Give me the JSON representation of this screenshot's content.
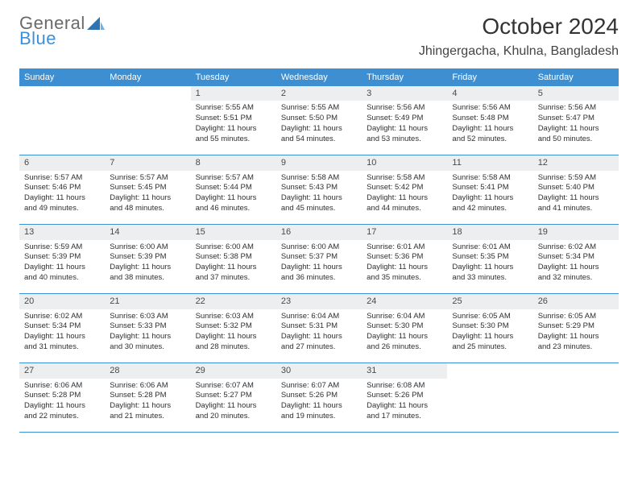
{
  "brand": {
    "part1": "General",
    "part2": "Blue"
  },
  "header": {
    "month_title": "October 2024",
    "location": "Jhingergacha, Khulna, Bangladesh"
  },
  "theme": {
    "header_bg": "#3d8fd1",
    "header_text": "#ffffff",
    "daybar_bg": "#eceeef",
    "rule_color": "#3d8fd1",
    "text_color": "#2f2f2f"
  },
  "days_of_week": [
    "Sunday",
    "Monday",
    "Tuesday",
    "Wednesday",
    "Thursday",
    "Friday",
    "Saturday"
  ],
  "weeks": [
    [
      {
        "num": "",
        "sunrise": "",
        "sunset": "",
        "daylight": ""
      },
      {
        "num": "",
        "sunrise": "",
        "sunset": "",
        "daylight": ""
      },
      {
        "num": "1",
        "sunrise": "Sunrise: 5:55 AM",
        "sunset": "Sunset: 5:51 PM",
        "daylight": "Daylight: 11 hours and 55 minutes."
      },
      {
        "num": "2",
        "sunrise": "Sunrise: 5:55 AM",
        "sunset": "Sunset: 5:50 PM",
        "daylight": "Daylight: 11 hours and 54 minutes."
      },
      {
        "num": "3",
        "sunrise": "Sunrise: 5:56 AM",
        "sunset": "Sunset: 5:49 PM",
        "daylight": "Daylight: 11 hours and 53 minutes."
      },
      {
        "num": "4",
        "sunrise": "Sunrise: 5:56 AM",
        "sunset": "Sunset: 5:48 PM",
        "daylight": "Daylight: 11 hours and 52 minutes."
      },
      {
        "num": "5",
        "sunrise": "Sunrise: 5:56 AM",
        "sunset": "Sunset: 5:47 PM",
        "daylight": "Daylight: 11 hours and 50 minutes."
      }
    ],
    [
      {
        "num": "6",
        "sunrise": "Sunrise: 5:57 AM",
        "sunset": "Sunset: 5:46 PM",
        "daylight": "Daylight: 11 hours and 49 minutes."
      },
      {
        "num": "7",
        "sunrise": "Sunrise: 5:57 AM",
        "sunset": "Sunset: 5:45 PM",
        "daylight": "Daylight: 11 hours and 48 minutes."
      },
      {
        "num": "8",
        "sunrise": "Sunrise: 5:57 AM",
        "sunset": "Sunset: 5:44 PM",
        "daylight": "Daylight: 11 hours and 46 minutes."
      },
      {
        "num": "9",
        "sunrise": "Sunrise: 5:58 AM",
        "sunset": "Sunset: 5:43 PM",
        "daylight": "Daylight: 11 hours and 45 minutes."
      },
      {
        "num": "10",
        "sunrise": "Sunrise: 5:58 AM",
        "sunset": "Sunset: 5:42 PM",
        "daylight": "Daylight: 11 hours and 44 minutes."
      },
      {
        "num": "11",
        "sunrise": "Sunrise: 5:58 AM",
        "sunset": "Sunset: 5:41 PM",
        "daylight": "Daylight: 11 hours and 42 minutes."
      },
      {
        "num": "12",
        "sunrise": "Sunrise: 5:59 AM",
        "sunset": "Sunset: 5:40 PM",
        "daylight": "Daylight: 11 hours and 41 minutes."
      }
    ],
    [
      {
        "num": "13",
        "sunrise": "Sunrise: 5:59 AM",
        "sunset": "Sunset: 5:39 PM",
        "daylight": "Daylight: 11 hours and 40 minutes."
      },
      {
        "num": "14",
        "sunrise": "Sunrise: 6:00 AM",
        "sunset": "Sunset: 5:39 PM",
        "daylight": "Daylight: 11 hours and 38 minutes."
      },
      {
        "num": "15",
        "sunrise": "Sunrise: 6:00 AM",
        "sunset": "Sunset: 5:38 PM",
        "daylight": "Daylight: 11 hours and 37 minutes."
      },
      {
        "num": "16",
        "sunrise": "Sunrise: 6:00 AM",
        "sunset": "Sunset: 5:37 PM",
        "daylight": "Daylight: 11 hours and 36 minutes."
      },
      {
        "num": "17",
        "sunrise": "Sunrise: 6:01 AM",
        "sunset": "Sunset: 5:36 PM",
        "daylight": "Daylight: 11 hours and 35 minutes."
      },
      {
        "num": "18",
        "sunrise": "Sunrise: 6:01 AM",
        "sunset": "Sunset: 5:35 PM",
        "daylight": "Daylight: 11 hours and 33 minutes."
      },
      {
        "num": "19",
        "sunrise": "Sunrise: 6:02 AM",
        "sunset": "Sunset: 5:34 PM",
        "daylight": "Daylight: 11 hours and 32 minutes."
      }
    ],
    [
      {
        "num": "20",
        "sunrise": "Sunrise: 6:02 AM",
        "sunset": "Sunset: 5:34 PM",
        "daylight": "Daylight: 11 hours and 31 minutes."
      },
      {
        "num": "21",
        "sunrise": "Sunrise: 6:03 AM",
        "sunset": "Sunset: 5:33 PM",
        "daylight": "Daylight: 11 hours and 30 minutes."
      },
      {
        "num": "22",
        "sunrise": "Sunrise: 6:03 AM",
        "sunset": "Sunset: 5:32 PM",
        "daylight": "Daylight: 11 hours and 28 minutes."
      },
      {
        "num": "23",
        "sunrise": "Sunrise: 6:04 AM",
        "sunset": "Sunset: 5:31 PM",
        "daylight": "Daylight: 11 hours and 27 minutes."
      },
      {
        "num": "24",
        "sunrise": "Sunrise: 6:04 AM",
        "sunset": "Sunset: 5:30 PM",
        "daylight": "Daylight: 11 hours and 26 minutes."
      },
      {
        "num": "25",
        "sunrise": "Sunrise: 6:05 AM",
        "sunset": "Sunset: 5:30 PM",
        "daylight": "Daylight: 11 hours and 25 minutes."
      },
      {
        "num": "26",
        "sunrise": "Sunrise: 6:05 AM",
        "sunset": "Sunset: 5:29 PM",
        "daylight": "Daylight: 11 hours and 23 minutes."
      }
    ],
    [
      {
        "num": "27",
        "sunrise": "Sunrise: 6:06 AM",
        "sunset": "Sunset: 5:28 PM",
        "daylight": "Daylight: 11 hours and 22 minutes."
      },
      {
        "num": "28",
        "sunrise": "Sunrise: 6:06 AM",
        "sunset": "Sunset: 5:28 PM",
        "daylight": "Daylight: 11 hours and 21 minutes."
      },
      {
        "num": "29",
        "sunrise": "Sunrise: 6:07 AM",
        "sunset": "Sunset: 5:27 PM",
        "daylight": "Daylight: 11 hours and 20 minutes."
      },
      {
        "num": "30",
        "sunrise": "Sunrise: 6:07 AM",
        "sunset": "Sunset: 5:26 PM",
        "daylight": "Daylight: 11 hours and 19 minutes."
      },
      {
        "num": "31",
        "sunrise": "Sunrise: 6:08 AM",
        "sunset": "Sunset: 5:26 PM",
        "daylight": "Daylight: 11 hours and 17 minutes."
      },
      {
        "num": "",
        "sunrise": "",
        "sunset": "",
        "daylight": ""
      },
      {
        "num": "",
        "sunrise": "",
        "sunset": "",
        "daylight": ""
      }
    ]
  ]
}
